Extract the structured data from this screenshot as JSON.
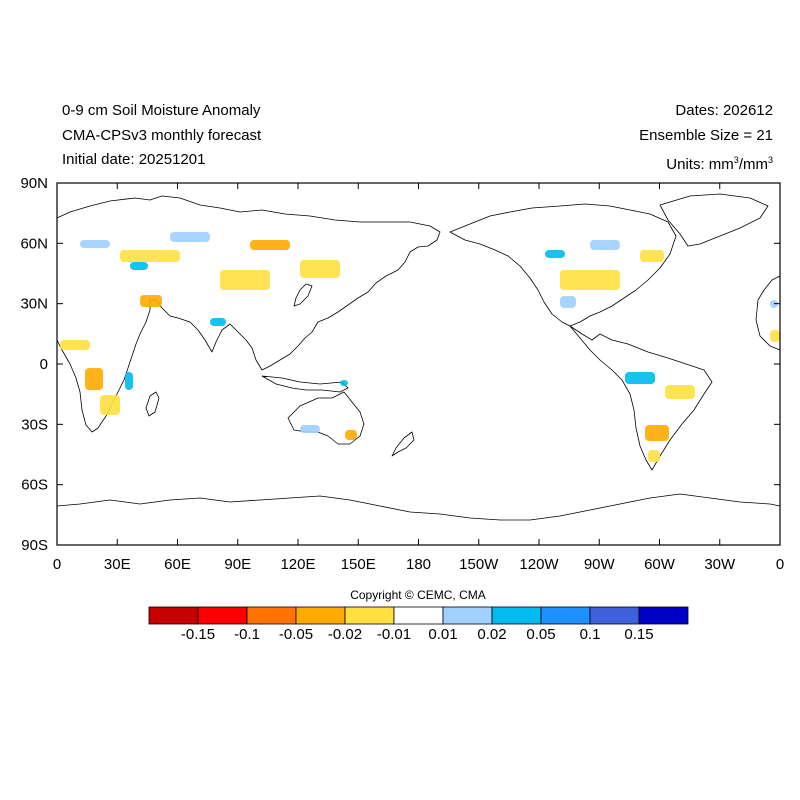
{
  "header": {
    "title_line1": "0-9 cm Soil Moisture Anomaly",
    "title_line2": "CMA-CPSv3 monthly forecast",
    "title_line3": "Initial date: 20251201",
    "dates": "Dates: 202612",
    "ensemble": "Ensemble Size = 21",
    "units_prefix": "Units: mm",
    "units_sup1": "3",
    "units_mid": "/mm",
    "units_sup2": "3"
  },
  "axes": {
    "y_ticks": [
      "90N",
      "60N",
      "30N",
      "0",
      "30S",
      "60S",
      "90S"
    ],
    "x_ticks": [
      "0",
      "30E",
      "60E",
      "90E",
      "120E",
      "150E",
      "180",
      "150W",
      "120W",
      "90W",
      "60W",
      "30W",
      "0"
    ]
  },
  "copyright": "Copyright © CEMC, CMA",
  "colorbar": {
    "colors": [
      "#c80000",
      "#ff0000",
      "#ff7400",
      "#ffaa00",
      "#ffe040",
      "#ffffff",
      "#9fd0ff",
      "#00baf0",
      "#1e90ff",
      "#3f60dc",
      "#0000c8"
    ],
    "labels": [
      "-0.15",
      "-0.1",
      "-0.05",
      "-0.02",
      "-0.01",
      "0.01",
      "0.02",
      "0.05",
      "0.1",
      "0.15"
    ]
  }
}
